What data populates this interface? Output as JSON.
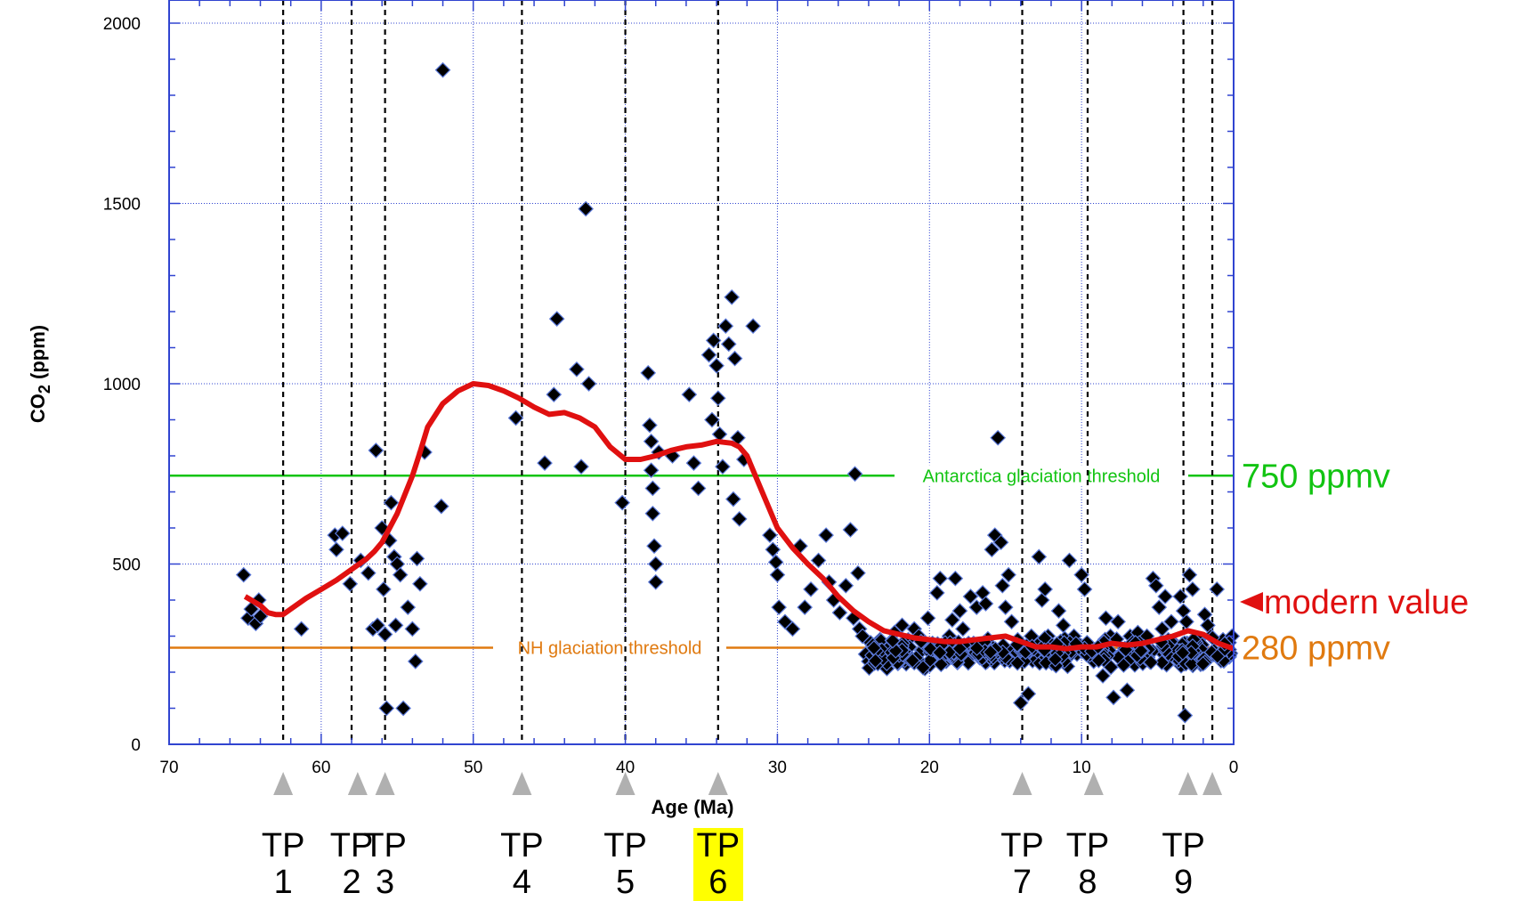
{
  "chart_data": {
    "type": "scatter",
    "xlabel": "Age (Ma)",
    "ylabel_main": "CO",
    "ylabel_sub": "2",
    "ylabel_unit": " (ppm)",
    "xlim": [
      70,
      0
    ],
    "ylim": [
      0,
      2000
    ],
    "x_reversed": true,
    "grid": true,
    "xticks": [
      70,
      60,
      50,
      40,
      30,
      20,
      10,
      0
    ],
    "yticks": [
      0,
      500,
      1000,
      1500,
      2000
    ],
    "colors": {
      "points": "#000000",
      "point_edge": "#5a78d8",
      "smooth": "#e01010",
      "green": "#12c412",
      "orange": "#e07a10",
      "grid": "#3044d0",
      "marker": "#b0b0b0",
      "highlight": "#ffff00"
    },
    "thresholds": [
      {
        "y": 745,
        "label": "Antarctica glaciation threshold",
        "right_label": "750 ppmv",
        "color": "#12c412"
      },
      {
        "y": 268,
        "label": "NH glaciation threshold",
        "right_label": "280 ppmv",
        "color": "#e07a10"
      }
    ],
    "modern_value": {
      "y": 395,
      "label": "modern value"
    },
    "tipping_points": [
      {
        "top": "TP",
        "num": "1",
        "age": 62.5,
        "marker": 62.5,
        "highlight": false
      },
      {
        "top": "TP",
        "num": "2",
        "age": 58.0,
        "marker": 57.6,
        "highlight": false
      },
      {
        "top": "TP",
        "num": "3",
        "age": 55.8,
        "marker": 55.8,
        "highlight": false
      },
      {
        "top": "TP",
        "num": "4",
        "age": 46.8,
        "marker": 46.8,
        "highlight": false
      },
      {
        "top": "TP",
        "num": "5",
        "age": 40.0,
        "marker": 40.0,
        "highlight": false
      },
      {
        "top": "TP",
        "num": "6",
        "age": 33.9,
        "marker": 33.9,
        "highlight": true
      },
      {
        "top": "TP",
        "num": "7",
        "age": 13.9,
        "marker": 13.9,
        "highlight": false
      },
      {
        "top": "TP",
        "num": "8",
        "age": 9.6,
        "marker": 9.2,
        "highlight": false
      },
      {
        "top": "TP",
        "num": "9",
        "age": 3.3,
        "marker": 3.0,
        "highlight": false
      },
      {
        "top": "",
        "num": "",
        "age": 1.4,
        "marker": 1.4,
        "highlight": false
      }
    ],
    "smooth_series": {
      "x": [
        65,
        64,
        63.5,
        63,
        62.5,
        62,
        61,
        60,
        59,
        58,
        57,
        56.5,
        56,
        55,
        54,
        53.5,
        53,
        52,
        51,
        50,
        49,
        48,
        47,
        46,
        45,
        44,
        43,
        42,
        41,
        40,
        39,
        38,
        37,
        36,
        35,
        34,
        33,
        32.5,
        32,
        31,
        30,
        29,
        28,
        27,
        26,
        25,
        24,
        23,
        22,
        21,
        20,
        19,
        18,
        17,
        16,
        15,
        14,
        13,
        12,
        11,
        10,
        9,
        8,
        7,
        6,
        5,
        4,
        3,
        2,
        1,
        0
      ],
      "y": [
        410,
        385,
        365,
        360,
        360,
        375,
        405,
        430,
        455,
        485,
        515,
        535,
        560,
        640,
        745,
        810,
        880,
        945,
        980,
        1000,
        995,
        980,
        960,
        935,
        915,
        920,
        905,
        880,
        825,
        790,
        790,
        800,
        815,
        825,
        830,
        840,
        835,
        825,
        800,
        700,
        600,
        545,
        500,
        460,
        410,
        370,
        340,
        315,
        305,
        295,
        290,
        285,
        285,
        290,
        295,
        300,
        285,
        270,
        270,
        265,
        270,
        270,
        280,
        275,
        280,
        290,
        300,
        315,
        305,
        280,
        265
      ]
    },
    "points": [
      [
        65.1,
        470
      ],
      [
        64.8,
        350
      ],
      [
        64.6,
        375
      ],
      [
        64.3,
        335
      ],
      [
        64.1,
        400
      ],
      [
        64.0,
        355
      ],
      [
        61.3,
        320
      ],
      [
        59.1,
        580
      ],
      [
        59.0,
        540
      ],
      [
        58.6,
        585
      ],
      [
        58.1,
        445
      ],
      [
        57.4,
        510
      ],
      [
        56.9,
        475
      ],
      [
        56.6,
        320
      ],
      [
        56.4,
        815
      ],
      [
        56.3,
        330
      ],
      [
        56.0,
        600
      ],
      [
        55.9,
        430
      ],
      [
        55.8,
        305
      ],
      [
        55.7,
        100
      ],
      [
        55.5,
        565
      ],
      [
        55.4,
        670
      ],
      [
        55.2,
        520
      ],
      [
        55.1,
        330
      ],
      [
        55.0,
        500
      ],
      [
        54.8,
        470
      ],
      [
        54.6,
        100
      ],
      [
        54.3,
        380
      ],
      [
        54.0,
        320
      ],
      [
        53.8,
        230
      ],
      [
        53.7,
        515
      ],
      [
        53.5,
        445
      ],
      [
        53.2,
        810
      ],
      [
        52.1,
        660
      ],
      [
        52.0,
        1870
      ],
      [
        47.2,
        905
      ],
      [
        45.3,
        780
      ],
      [
        44.7,
        970
      ],
      [
        44.5,
        1180
      ],
      [
        43.2,
        1040
      ],
      [
        42.9,
        770
      ],
      [
        42.6,
        1485
      ],
      [
        42.4,
        1000
      ],
      [
        40.2,
        670
      ],
      [
        38.5,
        1030
      ],
      [
        38.4,
        885
      ],
      [
        38.3,
        840
      ],
      [
        38.3,
        760
      ],
      [
        38.2,
        710
      ],
      [
        38.2,
        640
      ],
      [
        38.1,
        550
      ],
      [
        38.0,
        500
      ],
      [
        38.0,
        450
      ],
      [
        37.8,
        810
      ],
      [
        36.9,
        800
      ],
      [
        35.8,
        970
      ],
      [
        35.5,
        780
      ],
      [
        35.2,
        710
      ],
      [
        34.5,
        1080
      ],
      [
        34.3,
        900
      ],
      [
        34.2,
        1120
      ],
      [
        34.0,
        1050
      ],
      [
        33.9,
        960
      ],
      [
        33.8,
        860
      ],
      [
        33.6,
        770
      ],
      [
        33.4,
        1160
      ],
      [
        33.2,
        1110
      ],
      [
        33.0,
        1240
      ],
      [
        32.9,
        680
      ],
      [
        32.8,
        1070
      ],
      [
        32.6,
        850
      ],
      [
        32.5,
        625
      ],
      [
        32.2,
        790
      ],
      [
        31.6,
        1160
      ],
      [
        30.5,
        580
      ],
      [
        30.3,
        540
      ],
      [
        30.1,
        505
      ],
      [
        30.0,
        470
      ],
      [
        29.9,
        380
      ],
      [
        29.5,
        340
      ],
      [
        29.0,
        320
      ],
      [
        28.5,
        550
      ],
      [
        28.2,
        380
      ],
      [
        27.8,
        430
      ],
      [
        27.3,
        510
      ],
      [
        26.8,
        580
      ],
      [
        26.6,
        450
      ],
      [
        26.3,
        400
      ],
      [
        25.9,
        365
      ],
      [
        25.5,
        440
      ],
      [
        25.2,
        595
      ],
      [
        25.0,
        350
      ],
      [
        24.9,
        750
      ],
      [
        24.7,
        475
      ],
      [
        24.6,
        320
      ],
      [
        24.4,
        300
      ],
      [
        24.2,
        250
      ],
      [
        24.0,
        230
      ],
      [
        23.5,
        280
      ],
      [
        23.2,
        260
      ],
      [
        22.8,
        210
      ],
      [
        22.3,
        310
      ],
      [
        21.8,
        330
      ],
      [
        21.4,
        290
      ],
      [
        21.0,
        320
      ],
      [
        20.7,
        300
      ],
      [
        20.5,
        260
      ],
      [
        20.3,
        210
      ],
      [
        20.1,
        350
      ],
      [
        19.8,
        280
      ],
      [
        19.5,
        420
      ],
      [
        19.3,
        460
      ],
      [
        19.1,
        250
      ],
      [
        18.9,
        230
      ],
      [
        18.7,
        300
      ],
      [
        18.5,
        345
      ],
      [
        18.3,
        460
      ],
      [
        18.0,
        370
      ],
      [
        17.8,
        320
      ],
      [
        17.6,
        250
      ],
      [
        17.3,
        410
      ],
      [
        17.1,
        280
      ],
      [
        16.9,
        380
      ],
      [
        16.7,
        240
      ],
      [
        16.5,
        420
      ],
      [
        16.3,
        390
      ],
      [
        16.1,
        280
      ],
      [
        15.9,
        540
      ],
      [
        15.7,
        580
      ],
      [
        15.5,
        850
      ],
      [
        15.3,
        560
      ],
      [
        15.2,
        440
      ],
      [
        15.0,
        380
      ],
      [
        14.8,
        470
      ],
      [
        14.6,
        340
      ],
      [
        14.4,
        240
      ],
      [
        14.2,
        290
      ],
      [
        14.0,
        115
      ],
      [
        13.8,
        270
      ],
      [
        13.5,
        140
      ],
      [
        13.3,
        300
      ],
      [
        13.1,
        250
      ],
      [
        12.8,
        520
      ],
      [
        12.6,
        400
      ],
      [
        12.4,
        430
      ],
      [
        12.2,
        300
      ],
      [
        12.0,
        240
      ],
      [
        11.5,
        370
      ],
      [
        11.2,
        330
      ],
      [
        10.8,
        510
      ],
      [
        10.5,
        300
      ],
      [
        10.3,
        250
      ],
      [
        10.0,
        470
      ],
      [
        9.8,
        430
      ],
      [
        9.5,
        260
      ],
      [
        9.2,
        230
      ],
      [
        9.0,
        250
      ],
      [
        8.6,
        190
      ],
      [
        8.4,
        350
      ],
      [
        8.1,
        300
      ],
      [
        7.9,
        130
      ],
      [
        7.6,
        340
      ],
      [
        7.3,
        250
      ],
      [
        7.0,
        150
      ],
      [
        6.8,
        300
      ],
      [
        6.5,
        220
      ],
      [
        6.3,
        310
      ],
      [
        6.0,
        260
      ],
      [
        5.7,
        300
      ],
      [
        5.5,
        230
      ],
      [
        5.3,
        460
      ],
      [
        5.1,
        440
      ],
      [
        4.9,
        380
      ],
      [
        4.7,
        320
      ],
      [
        4.5,
        410
      ],
      [
        4.3,
        290
      ],
      [
        4.1,
        340
      ],
      [
        3.9,
        280
      ],
      [
        3.7,
        260
      ],
      [
        3.5,
        410
      ],
      [
        3.3,
        370
      ],
      [
        3.2,
        80
      ],
      [
        3.1,
        340
      ],
      [
        2.9,
        470
      ],
      [
        2.7,
        430
      ],
      [
        2.5,
        260
      ],
      [
        2.3,
        290
      ],
      [
        2.1,
        250
      ],
      [
        1.9,
        360
      ],
      [
        1.7,
        330
      ],
      [
        1.5,
        300
      ],
      [
        1.3,
        260
      ],
      [
        1.1,
        430
      ],
      [
        0.9,
        250
      ],
      [
        0.7,
        290
      ],
      [
        0.5,
        270
      ],
      [
        0.3,
        255
      ],
      [
        0.1,
        300
      ]
    ],
    "dense_band": {
      "from": 24,
      "to": 0.2,
      "count": 360,
      "center": 255,
      "spread": 45
    }
  }
}
